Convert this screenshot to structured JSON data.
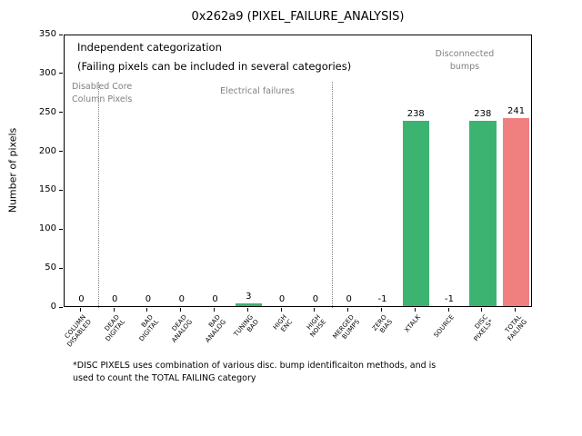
{
  "title": "0x262a9 (PIXEL_FAILURE_ANALYSIS)",
  "footnote": "*DISC PIXELS uses combination of various disc. bump identificaiton methods, and is\nused to count the TOTAL FAILING category",
  "chart_data": {
    "type": "bar",
    "title": "0x262a9 (PIXEL_FAILURE_ANALYSIS)",
    "xlabel": "",
    "ylabel": "Number of pixels",
    "ylim": [
      0,
      350
    ],
    "yticks": [
      0,
      50,
      100,
      150,
      200,
      250,
      300,
      350
    ],
    "grid": false,
    "legend": "none",
    "categories": [
      "COLUMN\nDISABLED",
      "DEAD\nDIGITAL",
      "BAD\nDIGITAL",
      "DEAD\nANALOG",
      "BAD\nANALOG",
      "TUNING\nBAD",
      "HIGH\nENC",
      "HIGH\nNOISE",
      "MERGED\nBUMPS",
      "ZERO\nBIAS",
      "XTALK",
      "SOURCE",
      "DISC\nPIXELS*",
      "TOTAL\nFAILING"
    ],
    "values": [
      0,
      0,
      0,
      0,
      0,
      3,
      0,
      0,
      0,
      -1,
      238,
      -1,
      238,
      241
    ],
    "bar_colors": [
      "#3cb371",
      "#3cb371",
      "#3cb371",
      "#3cb371",
      "#3cb371",
      "#3cb371",
      "#3cb371",
      "#3cb371",
      "#3cb371",
      "#3cb371",
      "#3cb371",
      "#3cb371",
      "#3cb371",
      "#f08080"
    ],
    "separators": [
      {
        "after_index": 0,
        "top_value": 290
      },
      {
        "after_index": 7,
        "top_value": 290
      }
    ],
    "annotations": {
      "independent_note": "Independent categorization\n(Failing pixels can be included in several categories)",
      "section_disabled": "Disabled Core\nColumn Pixels",
      "section_electrical": "Electrical failures",
      "section_disconnected": "Disconnected\nbumps"
    },
    "colors": {
      "bar_green": "#3cb371",
      "bar_red": "#f08080",
      "section_text": "#808080",
      "separator": "#808080"
    }
  }
}
